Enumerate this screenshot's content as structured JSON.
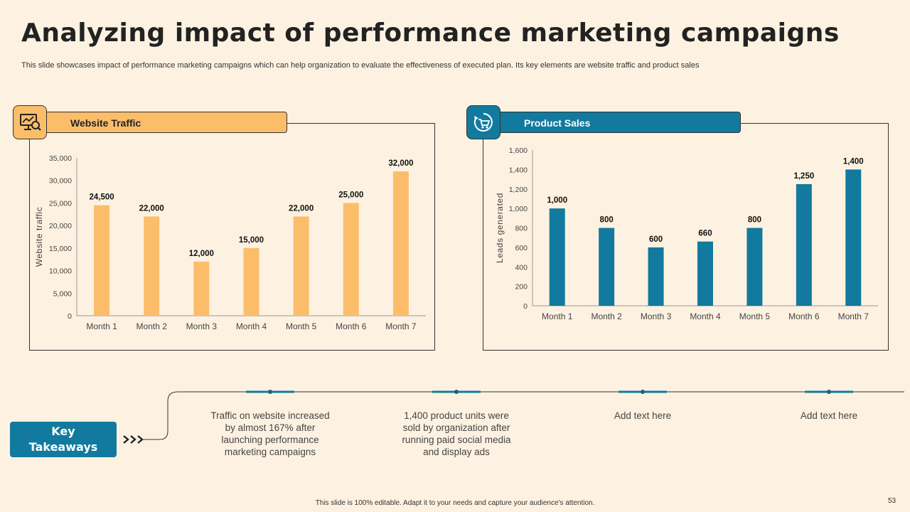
{
  "title": "Analyzing impact of performance marketing campaigns",
  "subtitle": "This slide showcases impact of performance marketing campaigns which can help organization to evaluate the effectiveness of executed plan. Its key elements are website traffic and product sales",
  "panels": {
    "traffic": {
      "header": "Website Traffic",
      "icon": "analytics-monitor-icon"
    },
    "sales": {
      "header": "Product Sales",
      "icon": "shopping-cart-cycle-icon"
    }
  },
  "colors": {
    "orange": "#FCBD6B",
    "blue": "#127A9E",
    "background": "#FDF2E1"
  },
  "chart_data": [
    {
      "type": "bar",
      "title": "Website Traffic",
      "categories": [
        "Month 1",
        "Month 2",
        "Month 3",
        "Month 4",
        "Month 5",
        "Month 6",
        "Month 7"
      ],
      "values": [
        24500,
        22000,
        12000,
        15000,
        22000,
        25000,
        32000
      ],
      "value_labels": [
        "24,500",
        "22,000",
        "12,000",
        "15,000",
        "22,000",
        "25,000",
        "32,000"
      ],
      "xlabel": "",
      "ylabel": "Website traffic",
      "ylim": [
        0,
        35000
      ],
      "yticks": [
        "0",
        "5,000",
        "10,000",
        "15,000",
        "20,000",
        "25,000",
        "30,000",
        "35,000"
      ],
      "color": "#FCBD6B",
      "grid": false
    },
    {
      "type": "bar",
      "title": "Product Sales",
      "categories": [
        "Month 1",
        "Month 2",
        "Month 3",
        "Month 4",
        "Month 5",
        "Month 6",
        "Month 7"
      ],
      "values": [
        1000,
        800,
        600,
        660,
        800,
        1250,
        1400
      ],
      "value_labels": [
        "1,000",
        "800",
        "600",
        "660",
        "800",
        "1,250",
        "1,400"
      ],
      "xlabel": "",
      "ylabel": "Leads generated",
      "ylim": [
        0,
        1600
      ],
      "yticks": [
        "0",
        "200",
        "400",
        "600",
        "800",
        "1,000",
        "1,200",
        "1,400",
        "1,600"
      ],
      "color": "#127A9E",
      "grid": false
    }
  ],
  "key_takeaways": {
    "label_line1": "Key",
    "label_line2": "Takeaways",
    "arrow_icon": "triple-chevron-icon",
    "items": [
      "Traffic on website increased by almost 167% after launching performance marketing campaigns",
      "1,400 product units were sold by organization after running paid social media and display ads",
      "Add text here",
      "Add text here"
    ]
  },
  "footer": "This slide is 100% editable. Adapt it to your needs and capture your audience's attention.",
  "page_number": "53"
}
